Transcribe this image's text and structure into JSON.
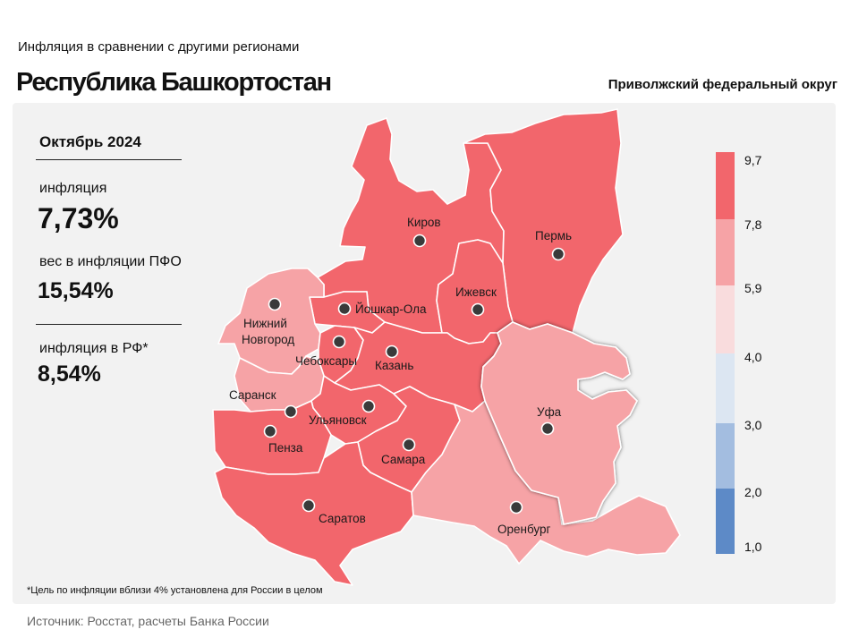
{
  "header": {
    "subtitle": "Инфляция  в сравнении  с другими  регионами",
    "title": "Республика Башкортостан",
    "district": "Приволжский федеральный округ"
  },
  "stats": {
    "period": "Октябрь 2024",
    "inflation_label": "инфляция",
    "inflation_value": "7,73%",
    "weight_label": "вес в инфляции  ПФО",
    "weight_value": "15,54%",
    "rf_label": "инфляция  в РФ*",
    "rf_value": "8,54%"
  },
  "footnote": "*Цель по инфляции вблизи 4% установлена для России в целом",
  "source": "Источник: Росстат, расчеты Банка России",
  "colors": {
    "dark_red": "#f2666c",
    "light_red": "#f6a3a6",
    "pale_pink": "#f9dcdd",
    "pale_blue": "#dce6f2",
    "light_blue": "#a3bde0",
    "blue": "#5d8ac7"
  },
  "legend": {
    "ticks": [
      "9,7",
      "7,8",
      "5,9",
      "4,0",
      "3,0",
      "2,0",
      "1,0"
    ],
    "bins": [
      {
        "from": "7,8",
        "to": "9,7",
        "color": "#f2666c"
      },
      {
        "from": "5,9",
        "to": "7,8",
        "color": "#f6a3a6"
      },
      {
        "from": "4,0",
        "to": "5,9",
        "color": "#f9dcdd"
      },
      {
        "from": "3,0",
        "to": "4,0",
        "color": "#dce6f2"
      },
      {
        "from": "2,0",
        "to": "3,0",
        "color": "#a3bde0"
      },
      {
        "from": "1,0",
        "to": "2,0",
        "color": "#5d8ac7"
      }
    ]
  },
  "cities": {
    "kirov": "Киров",
    "perm": "Пермь",
    "izhevsk": "Ижевск",
    "yoshkar_ola": "Йошкар-Ола",
    "nizhny_1": "Нижний",
    "nizhny_2": "Новгород",
    "cheboksary": "Чебоксары",
    "kazan": "Казань",
    "saransk": "Саранск",
    "ulyanovsk": "Ульяновск",
    "ufa": "Уфа",
    "penza": "Пенза",
    "samara": "Самара",
    "saratov": "Саратов",
    "orenburg": "Оренбург"
  },
  "regions": {
    "kirov": "dark_red",
    "perm": "dark_red",
    "udmurtia": "dark_red",
    "mari_el": "dark_red",
    "nizhny_novgorod": "light_red",
    "chuvashia": "dark_red",
    "tatarstan": "dark_red",
    "mordovia": "light_red",
    "ulyanovsk": "dark_red",
    "bashkortostan": "light_red",
    "penza": "dark_red",
    "samara": "dark_red",
    "saratov": "dark_red",
    "orenburg": "light_red"
  }
}
